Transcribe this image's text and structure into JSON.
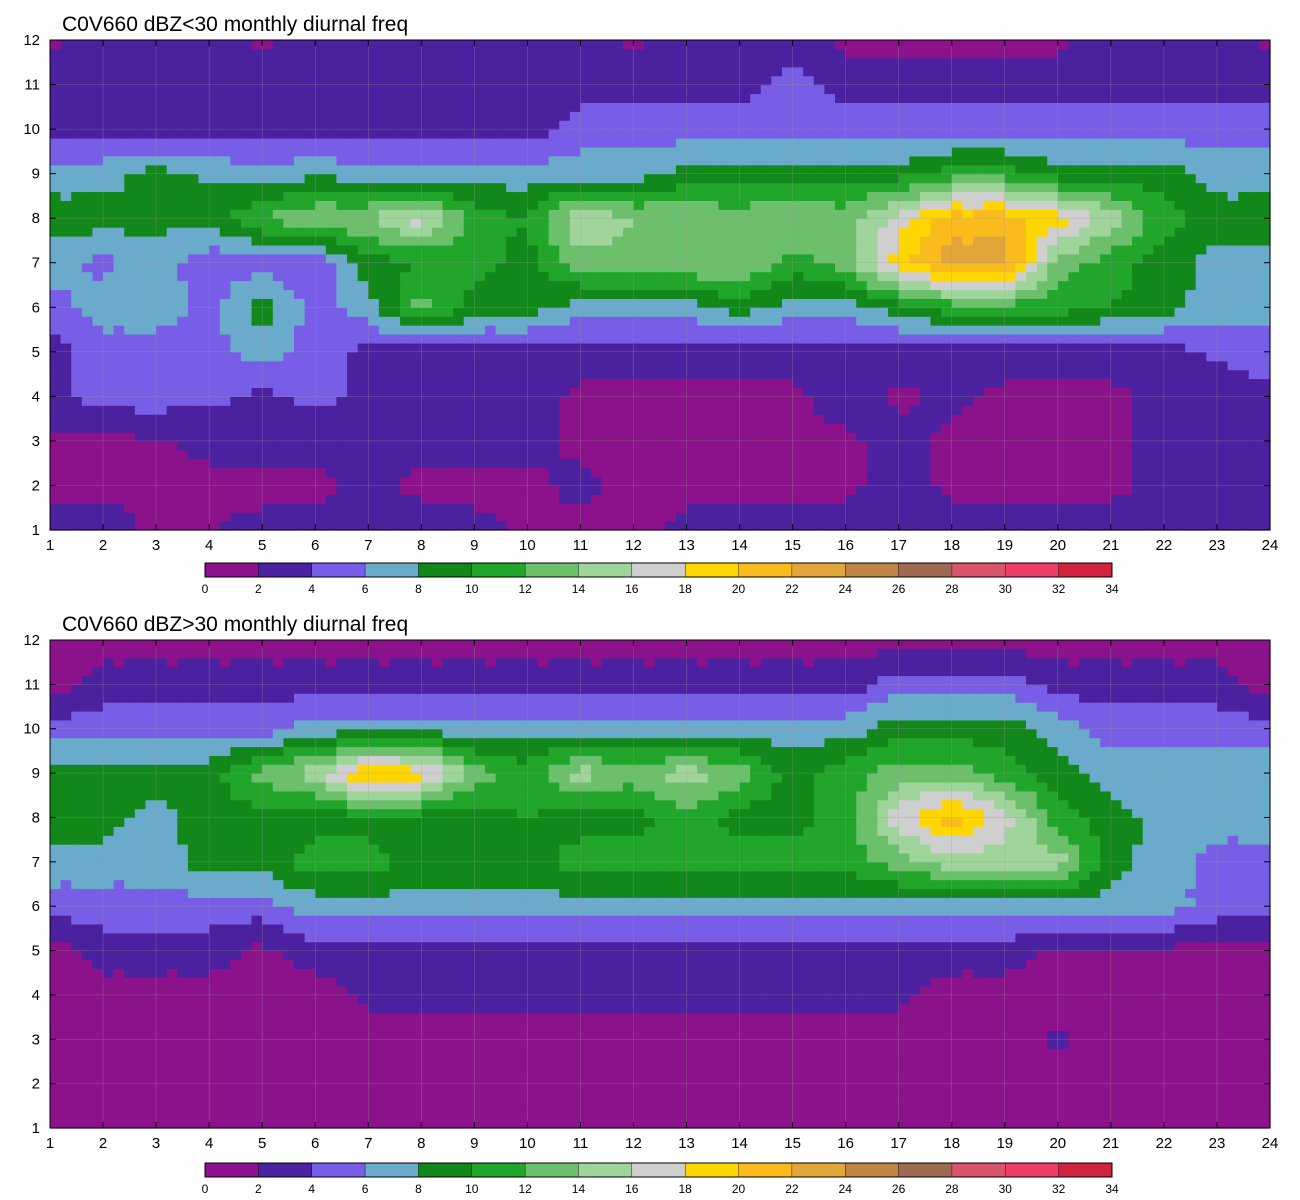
{
  "palette": [
    "#8B128B",
    "#4B219F",
    "#785DE6",
    "#6AABCC",
    "#13881A",
    "#21A52A",
    "#6CC06C",
    "#9FD59A",
    "#CFCFCF",
    "#FFD600",
    "#F9BC1C",
    "#E2A539",
    "#BD8446",
    "#9E6A51",
    "#D8556B",
    "#F03C68",
    "#D1223E"
  ],
  "contour_line_color": "#F3B22A",
  "chart_data": [
    {
      "type": "heatmap",
      "title": "C0V660 dBZ<30 monthly diurnal freq",
      "xlabel": "",
      "ylabel": "",
      "xlim": [
        1,
        24
      ],
      "ylim": [
        1,
        12
      ],
      "x_ticks": [
        1,
        2,
        3,
        4,
        5,
        6,
        7,
        8,
        9,
        10,
        11,
        12,
        13,
        14,
        15,
        16,
        17,
        18,
        19,
        20,
        21,
        22,
        23,
        24
      ],
      "y_ticks": [
        1,
        2,
        3,
        4,
        5,
        6,
        7,
        8,
        9,
        10,
        11,
        12
      ],
      "grid": true,
      "colorbar": {
        "position": "bottom",
        "levels": [
          0,
          2,
          4,
          6,
          8,
          10,
          12,
          14,
          16,
          18,
          20,
          22,
          24,
          26,
          28,
          30,
          32,
          34
        ]
      },
      "x": [
        1,
        2,
        3,
        4,
        5,
        6,
        7,
        8,
        9,
        10,
        11,
        12,
        13,
        14,
        15,
        16,
        17,
        18,
        19,
        20,
        21,
        22,
        23,
        24
      ],
      "y": [
        1,
        2,
        3,
        4,
        5,
        6,
        7,
        8,
        9,
        10,
        11,
        12
      ],
      "z": [
        [
          3,
          3,
          1.5,
          2,
          2.5,
          2.5,
          3,
          3,
          2.5,
          1.8,
          1.5,
          1.5,
          2.5,
          3,
          3,
          3,
          3,
          3,
          3,
          3,
          3,
          3,
          2.5,
          2.5
        ],
        [
          1.5,
          1.5,
          1.5,
          1.5,
          1.5,
          1.5,
          2.5,
          1.5,
          1.5,
          1.5,
          2.5,
          1.5,
          1.5,
          1.5,
          1.5,
          1.5,
          3,
          1.5,
          1.5,
          1.5,
          1.5,
          2.5,
          3,
          3
        ],
        [
          1.5,
          1.5,
          1.8,
          2.5,
          3,
          2.5,
          2.5,
          2.5,
          2.5,
          2.5,
          1.5,
          1.5,
          1.5,
          1.5,
          1.5,
          1.5,
          3,
          1.5,
          1.5,
          1.5,
          1.5,
          2.5,
          2.5,
          3
        ],
        [
          3,
          5,
          5,
          4.5,
          3.5,
          4.5,
          3.5,
          3,
          3,
          3,
          1.5,
          1.5,
          1.5,
          1.5,
          1.5,
          3,
          1.5,
          2.5,
          1.5,
          1.5,
          1.5,
          2.5,
          2.5,
          3.5
        ],
        [
          3,
          5,
          5,
          5,
          7,
          5,
          3.5,
          3,
          3,
          3,
          3,
          3,
          3,
          3,
          3,
          3,
          3,
          3,
          3,
          3,
          3,
          3,
          4.5,
          5
        ],
        [
          5,
          7,
          7,
          5.5,
          9,
          5,
          7,
          13,
          9,
          9,
          7,
          7,
          7,
          9,
          7,
          7,
          9,
          11,
          11,
          11,
          10,
          9,
          7,
          7
        ],
        [
          7,
          5.5,
          7,
          4.5,
          5,
          4.5,
          9,
          10,
          11,
          9,
          13,
          13,
          14,
          14,
          11,
          13,
          19,
          23,
          23,
          13,
          11,
          9,
          7,
          7
        ],
        [
          9,
          9,
          8.5,
          9,
          12,
          14,
          14,
          17,
          11,
          10,
          16,
          14,
          14,
          13,
          14,
          13,
          17,
          21,
          21,
          19,
          15,
          11,
          9,
          9
        ],
        [
          7,
          7,
          9,
          7.5,
          7,
          7.5,
          7,
          7,
          7,
          7,
          7,
          7,
          8.5,
          9,
          9,
          9,
          9,
          11,
          11,
          9,
          9,
          9,
          7,
          7
        ],
        [
          3.5,
          3.5,
          3,
          3,
          3,
          3,
          3,
          3,
          3,
          3,
          5,
          5,
          5,
          5,
          5,
          5,
          5,
          5,
          5,
          5,
          5,
          5,
          5,
          5
        ],
        [
          3,
          3,
          3,
          3,
          3,
          3,
          3,
          3,
          3,
          3,
          3,
          3,
          3,
          3,
          5,
          3,
          3,
          3,
          3,
          3,
          3,
          3,
          3,
          3
        ],
        [
          1.5,
          3,
          3,
          3,
          1.5,
          3,
          3,
          3,
          3,
          3,
          3,
          1.5,
          3,
          3,
          3,
          1.5,
          1.5,
          1.5,
          1.5,
          1.5,
          3,
          3,
          3,
          1.5
        ]
      ]
    },
    {
      "type": "heatmap",
      "title": "C0V660 dBZ>30 monthly diurnal freq",
      "xlabel": "",
      "ylabel": "",
      "xlim": [
        1,
        24
      ],
      "ylim": [
        1,
        12
      ],
      "x_ticks": [
        1,
        2,
        3,
        4,
        5,
        6,
        7,
        8,
        9,
        10,
        11,
        12,
        13,
        14,
        15,
        16,
        17,
        18,
        19,
        20,
        21,
        22,
        23,
        24
      ],
      "y_ticks": [
        1,
        2,
        3,
        4,
        5,
        6,
        7,
        8,
        9,
        10,
        11,
        12
      ],
      "grid": true,
      "colorbar": {
        "position": "bottom",
        "levels": [
          0,
          2,
          4,
          6,
          8,
          10,
          12,
          14,
          16,
          18,
          20,
          22,
          24,
          26,
          28,
          30,
          32,
          34
        ]
      },
      "x": [
        1,
        2,
        3,
        4,
        5,
        6,
        7,
        8,
        9,
        10,
        11,
        12,
        13,
        14,
        15,
        16,
        17,
        18,
        19,
        20,
        21,
        22,
        23,
        24
      ],
      "y": [
        1,
        2,
        3,
        4,
        5,
        6,
        7,
        8,
        9,
        10,
        11,
        12
      ],
      "z": [
        [
          1,
          1,
          1,
          1,
          1,
          1,
          1,
          1,
          1,
          1,
          1,
          1,
          1,
          1,
          1,
          1,
          1,
          1,
          1,
          1,
          1,
          1,
          1,
          1
        ],
        [
          1,
          1,
          1,
          1,
          1,
          1,
          1,
          1,
          1,
          1,
          1,
          1,
          1,
          1,
          1,
          1,
          1,
          1,
          1,
          1,
          1,
          1,
          1,
          1
        ],
        [
          1,
          1,
          1,
          1,
          1,
          1,
          1,
          1,
          1,
          1,
          1,
          1,
          1,
          1,
          1,
          1,
          1,
          1,
          1,
          2.5,
          1,
          1,
          1,
          1
        ],
        [
          1,
          1,
          1,
          1,
          1,
          1,
          2.5,
          2.5,
          2.5,
          2.5,
          2.5,
          2.5,
          2.5,
          2.5,
          2.5,
          2.5,
          2.5,
          1,
          1,
          1,
          1,
          1,
          1,
          1
        ],
        [
          1,
          3,
          3,
          3,
          1.5,
          3,
          3,
          3,
          3,
          3,
          3,
          3,
          3,
          3,
          3,
          3,
          3,
          3,
          3,
          1.5,
          1.5,
          1.5,
          1.5,
          1
        ],
        [
          5,
          5,
          5,
          5,
          5,
          7,
          7,
          7,
          7,
          7,
          7,
          7,
          7,
          7,
          7,
          7,
          7,
          7,
          7,
          7,
          7,
          7,
          5,
          5
        ],
        [
          7,
          7,
          7,
          9,
          9,
          11,
          11,
          9,
          9,
          9,
          11,
          11,
          11,
          11,
          11,
          11,
          13,
          15,
          15,
          15,
          9,
          7,
          5,
          5
        ],
        [
          9,
          9,
          7,
          9,
          9,
          9,
          9,
          9,
          9,
          10,
          9,
          9,
          11,
          9,
          9,
          11,
          17,
          21,
          17,
          11,
          9,
          7,
          7,
          7
        ],
        [
          9,
          9,
          9,
          9,
          13,
          15,
          21,
          19,
          13,
          11,
          15,
          13,
          15,
          13,
          9,
          11,
          13,
          13,
          11,
          9,
          7,
          7,
          7,
          7
        ],
        [
          5,
          5,
          5,
          5,
          5,
          7,
          7,
          7,
          7,
          7,
          7,
          7,
          7,
          7,
          7,
          7,
          9,
          9,
          9,
          7,
          5,
          5,
          5,
          5
        ],
        [
          1,
          3,
          3,
          3,
          3,
          3,
          3,
          3,
          3,
          3,
          3,
          3,
          3,
          3,
          3,
          3,
          5,
          5,
          5,
          3,
          3,
          3,
          3,
          1
        ],
        [
          1,
          1,
          1,
          1,
          1,
          1,
          1,
          1,
          1,
          1,
          1,
          1,
          1,
          1,
          1,
          1,
          1,
          1,
          1,
          1,
          1,
          1,
          1,
          1
        ]
      ]
    }
  ]
}
